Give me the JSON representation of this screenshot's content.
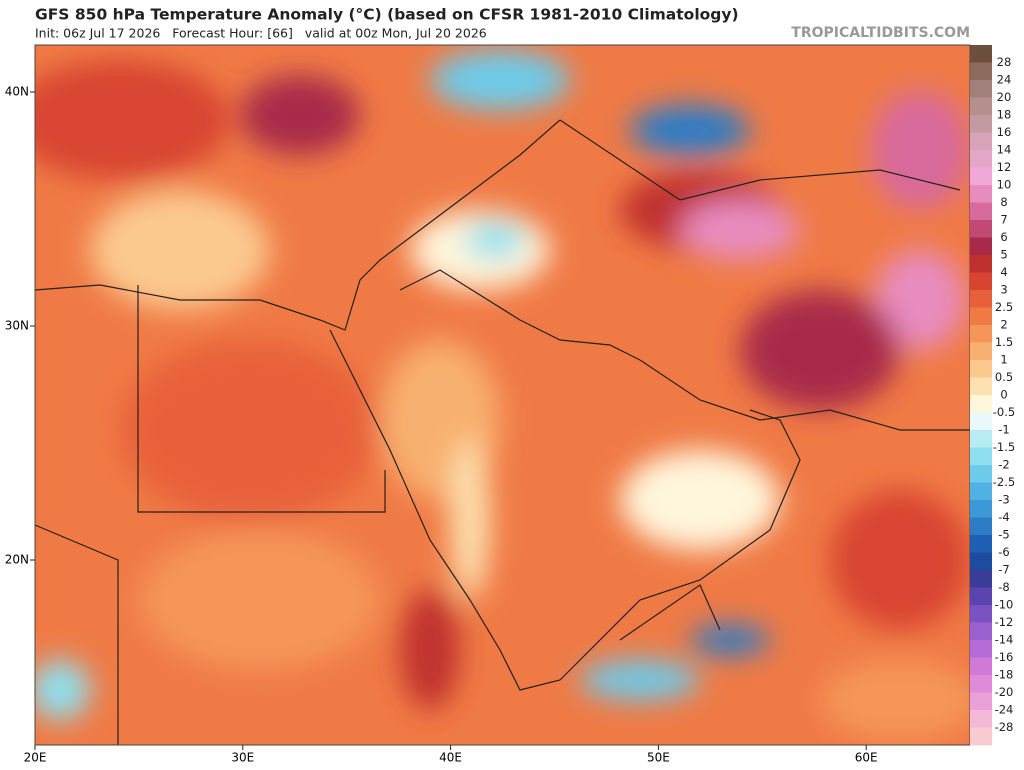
{
  "header": {
    "title": "GFS 850 hPa Temperature Anomaly (°C) (based on CFSR 1981-2010 Climatology)",
    "init": "Init: 06z Jul 17 2026   Forecast Hour: [66]   valid at 00z Mon, Jul 20 2026",
    "site": "TROPICALTIDBITS.COM"
  },
  "map": {
    "lat_labels": [
      "40N",
      "30N",
      "20N"
    ],
    "lon_labels": [
      "20E",
      "30E",
      "40E",
      "50E",
      "60E"
    ]
  },
  "colorbar": {
    "labels": [
      "28",
      "24",
      "20",
      "18",
      "16",
      "14",
      "12",
      "10",
      "8",
      "7",
      "6",
      "5",
      "4",
      "3",
      "2.5",
      "2",
      "1.5",
      "1",
      "0.5",
      "0",
      "-0.5",
      "-1",
      "-1.5",
      "-2",
      "-2.5",
      "-3",
      "-4",
      "-5",
      "-6",
      "-7",
      "-8",
      "-10",
      "-12",
      "-14",
      "-16",
      "-18",
      "-20",
      "-24",
      "-28"
    ],
    "colors": [
      "#6e4f3d",
      "#8c6b5d",
      "#a0807a",
      "#b48f8e",
      "#c49aa2",
      "#d6a3b8",
      "#e4a6c8",
      "#f2a8d8",
      "#e88cc0",
      "#d86a9c",
      "#c04a74",
      "#a82a48",
      "#c0302e",
      "#d84430",
      "#e8603a",
      "#f07a45",
      "#f59658",
      "#f8b070",
      "#fbc98e",
      "#fde2b0",
      "#fff6dc",
      "#e8f8fb",
      "#b8ecf4",
      "#8ee0f0",
      "#6ccbea",
      "#50b2e2",
      "#3c98d6",
      "#2c7cc8",
      "#1f60b4",
      "#1c4ca0",
      "#3a3c98",
      "#5a44b0",
      "#7a52c4",
      "#9a60d0",
      "#b66cd8",
      "#d07ad8",
      "#e08ad8",
      "#eca0d8",
      "#f4b8d8",
      "#f8ccd0"
    ]
  }
}
